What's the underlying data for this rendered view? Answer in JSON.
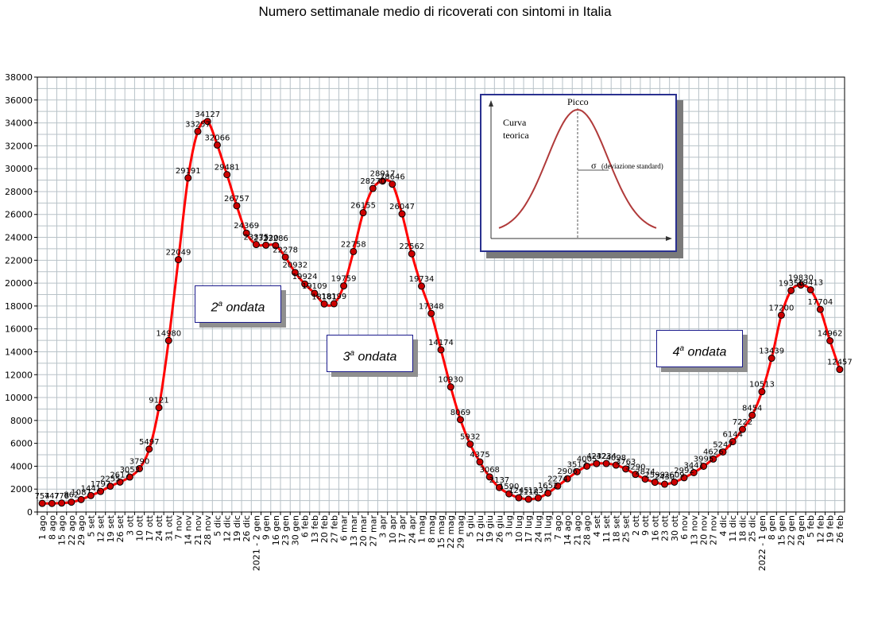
{
  "chart_data": {
    "type": "line",
    "title": "Numero settimanale medio di ricoverati con sintomi in Italia",
    "xlabel": "",
    "ylabel": "",
    "ylim": [
      0,
      38000
    ],
    "yticks": [
      0,
      2000,
      4000,
      6000,
      8000,
      10000,
      12000,
      14000,
      16000,
      18000,
      20000,
      22000,
      24000,
      26000,
      28000,
      30000,
      32000,
      34000,
      36000,
      38000
    ],
    "grid": true,
    "line_color": "#ff0000",
    "marker_color": "#cc0000",
    "categories": [
      "1 ago",
      "8 ago",
      "15 ago",
      "22 ago",
      "29 ago",
      "5 set",
      "12 set",
      "19 set",
      "26 set",
      "3 ott",
      "10 ott",
      "17 ott",
      "24 ott",
      "31 ott",
      "7 nov",
      "14 nov",
      "21 nov",
      "28 nov",
      "5 dic",
      "12 dic",
      "19 dic",
      "26 dic",
      "2021 - 2 gen",
      "9 gen",
      "16 gen",
      "23 gen",
      "30 gen",
      "6 feb",
      "13 feb",
      "20 feb",
      "27 feb",
      "6 mar",
      "13 mar",
      "20 mar",
      "27 mar",
      "3 apr",
      "10 apr",
      "17 apr",
      "24 apr",
      "1 mag",
      "8 mag",
      "15 mag",
      "22 mag",
      "29 mag",
      "5 giu",
      "12 giu",
      "19 giu",
      "26 giu",
      "3 lug",
      "10 lug",
      "17 lug",
      "24 lug",
      "31 lug",
      "7 ago",
      "14 ago",
      "21 ago",
      "28 ago",
      "4 set",
      "11 set",
      "18 set",
      "25 set",
      "2 ott",
      "9 ott",
      "16 ott",
      "23 ott",
      "30 ott",
      "6 nov",
      "13 nov",
      "20 nov",
      "27 nov",
      "4 dic",
      "11 dic",
      "18 dic",
      "25 dic",
      "2022 - 1 gen",
      "8 gen",
      "15 gen",
      "22 gen",
      "29 gen",
      "5 feb",
      "12 feb",
      "19 feb",
      "26 feb"
    ],
    "series": [
      {
        "values": [
          754,
          747,
          778,
          862,
          1087,
          1441,
          1797,
          2255,
          2617,
          3053,
          3790,
          5497,
          9121,
          14980,
          22049,
          29191,
          33257,
          34127,
          32066,
          29481,
          26757,
          24369,
          23375,
          23320,
          23286,
          22278,
          20932,
          19924,
          19109,
          18181,
          18199,
          19759,
          22758,
          26155,
          28270,
          28917,
          28646,
          26047,
          22562,
          19734,
          17348,
          14174,
          10930,
          8069,
          5932,
          4375,
          3068,
          2137,
          1590,
          1245,
          1118,
          1237,
          1652,
          2274,
          2906,
          3517,
          4005,
          4232,
          4234,
          4098,
          3763,
          3290,
          2874,
          2599,
          2430,
          2609,
          2992,
          3441,
          3995,
          4626,
          5247,
          6144,
          7222,
          8454,
          10513,
          13439,
          17200,
          19350,
          19830,
          19413,
          17704,
          14962,
          12457
        ]
      }
    ],
    "labels": [
      "754",
      "747",
      "778",
      "862",
      "1087",
      "1441",
      "1797",
      "2255",
      "2617",
      "3053",
      "3790",
      "5497",
      "9121",
      "14980",
      "22049",
      "29191",
      "33257",
      "34127",
      "32066",
      "29481",
      "26757",
      "24369",
      "23375",
      "23320",
      "23286",
      "22278",
      "20932",
      "19924",
      "19109",
      "18181",
      "18199",
      "19759",
      "22758",
      "26155",
      "28270",
      "28917",
      "28646",
      "26047",
      "22562",
      "19734",
      "17348",
      "14174",
      "10930",
      "8069",
      "5932",
      "4375",
      "3068",
      "2137",
      "1590",
      "1245",
      "1118",
      "1237",
      "1652",
      "2274",
      "2906",
      "3517",
      "4005",
      "4232",
      "4234",
      "4098",
      "3763",
      "3290",
      "2874",
      "2599",
      "2430",
      "2609",
      "2992",
      "3441",
      "3995",
      "4626",
      "5247",
      "6144",
      "7222",
      "8454",
      "10513",
      "13439",
      "17200",
      "19350",
      "19830",
      "19413",
      "17704",
      "14962",
      "12457"
    ]
  },
  "annotations": {
    "wave2": {
      "num": "2",
      "sup": "a",
      "word": "ondata"
    },
    "wave3": {
      "num": "3",
      "sup": "a",
      "word": "ondata"
    },
    "wave4": {
      "num": "4",
      "sup": "a",
      "word": "ondata"
    }
  },
  "inset": {
    "peak_label": "Picco",
    "curve_label_line1": "Curva",
    "curve_label_line2": "teorica",
    "sigma_symbol": "σ",
    "sigma_label": "(deviazione standard)",
    "curve_color": "#b03a3a"
  }
}
